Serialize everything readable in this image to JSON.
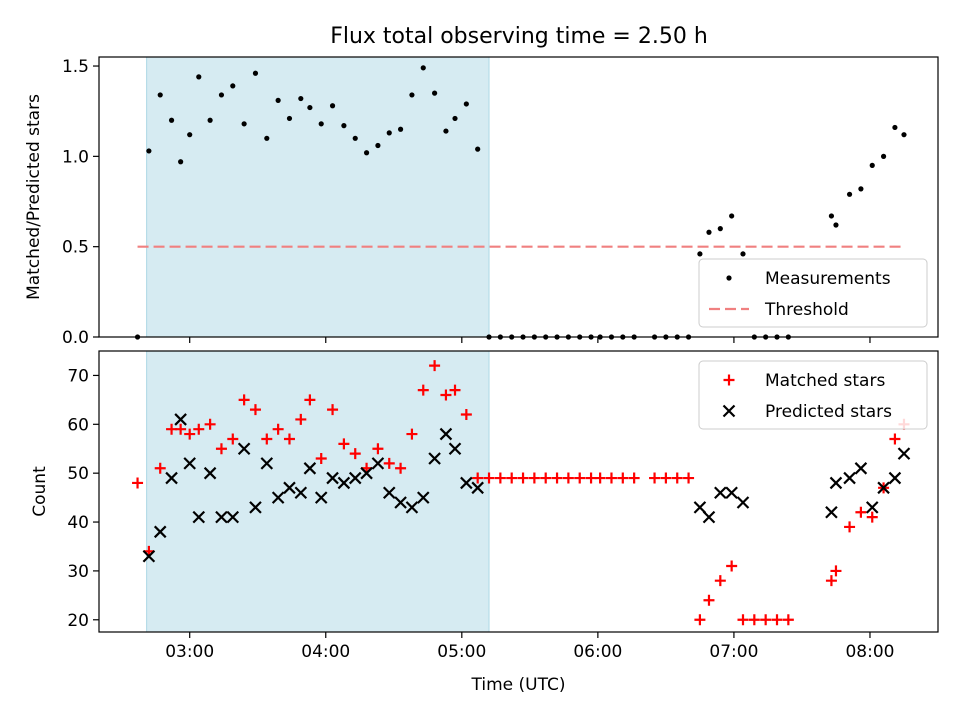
{
  "figure": {
    "title": "Flux total observing time = 2.50 h"
  },
  "chart_data": [
    {
      "type": "scatter",
      "ylabel": "Matched/Predicted stars",
      "xlim": [
        "02:20",
        "08:30"
      ],
      "ylim": [
        0,
        1.55
      ],
      "xticks": [
        "03:00",
        "04:00",
        "05:00",
        "06:00",
        "07:00",
        "08:00"
      ],
      "yticks": [
        0.0,
        0.5,
        1.0,
        1.5
      ],
      "ytick_labels": [
        "0.0",
        "0.5",
        "1.0",
        "1.5"
      ],
      "highlight_span": [
        "02:41",
        "05:12"
      ],
      "highlight_color": "#add8e6",
      "legend_position": "lower right",
      "series": [
        {
          "name": "Measurements",
          "marker": "dot",
          "color": "#000000",
          "points": [
            [
              "02:37",
              0.0
            ],
            [
              "02:42",
              1.03
            ],
            [
              "02:47",
              1.34
            ],
            [
              "02:52",
              1.2
            ],
            [
              "02:56",
              0.97
            ],
            [
              "03:00",
              1.12
            ],
            [
              "03:04",
              1.44
            ],
            [
              "03:09",
              1.2
            ],
            [
              "03:14",
              1.34
            ],
            [
              "03:19",
              1.39
            ],
            [
              "03:24",
              1.18
            ],
            [
              "03:29",
              1.46
            ],
            [
              "03:34",
              1.1
            ],
            [
              "03:39",
              1.31
            ],
            [
              "03:44",
              1.21
            ],
            [
              "03:49",
              1.32
            ],
            [
              "03:53",
              1.27
            ],
            [
              "03:58",
              1.18
            ],
            [
              "04:03",
              1.28
            ],
            [
              "04:08",
              1.17
            ],
            [
              "04:13",
              1.1
            ],
            [
              "04:18",
              1.02
            ],
            [
              "04:23",
              1.06
            ],
            [
              "04:28",
              1.13
            ],
            [
              "04:33",
              1.15
            ],
            [
              "04:38",
              1.34
            ],
            [
              "04:43",
              1.49
            ],
            [
              "04:48",
              1.35
            ],
            [
              "04:53",
              1.14
            ],
            [
              "04:57",
              1.21
            ],
            [
              "05:02",
              1.29
            ],
            [
              "05:07",
              1.04
            ],
            [
              "05:12",
              0.0
            ],
            [
              "05:17",
              0.0
            ],
            [
              "05:22",
              0.0
            ],
            [
              "05:27",
              0.0
            ],
            [
              "05:32",
              0.0
            ],
            [
              "05:37",
              0.0
            ],
            [
              "05:42",
              0.0
            ],
            [
              "05:47",
              0.0
            ],
            [
              "05:52",
              0.0
            ],
            [
              "05:57",
              0.0
            ],
            [
              "06:01",
              0.0
            ],
            [
              "06:06",
              0.0
            ],
            [
              "06:11",
              0.0
            ],
            [
              "06:16",
              0.0
            ],
            [
              "06:25",
              0.0
            ],
            [
              "06:30",
              0.0
            ],
            [
              "06:35",
              0.0
            ],
            [
              "06:40",
              0.0
            ],
            [
              "06:45",
              0.46
            ],
            [
              "06:49",
              0.58
            ],
            [
              "06:54",
              0.6
            ],
            [
              "06:59",
              0.67
            ],
            [
              "07:04",
              0.46
            ],
            [
              "07:09",
              0.0
            ],
            [
              "07:14",
              0.0
            ],
            [
              "07:19",
              0.0
            ],
            [
              "07:24",
              0.0
            ],
            [
              "07:43",
              0.67
            ],
            [
              "07:45",
              0.62
            ],
            [
              "07:51",
              0.79
            ],
            [
              "07:56",
              0.82
            ],
            [
              "08:01",
              0.95
            ],
            [
              "08:06",
              1.0
            ],
            [
              "08:11",
              1.16
            ],
            [
              "08:15",
              1.12
            ]
          ]
        },
        {
          "name": "Threshold",
          "marker": "dashed-line",
          "color": "#f08080",
          "points": [
            [
              "02:37",
              0.5
            ],
            [
              "08:15",
              0.5
            ]
          ]
        }
      ]
    },
    {
      "type": "scatter",
      "xlabel": "Time (UTC)",
      "ylabel": "Count",
      "xlim": [
        "02:20",
        "08:30"
      ],
      "ylim": [
        17.5,
        75
      ],
      "xticks": [
        "03:00",
        "04:00",
        "05:00",
        "06:00",
        "07:00",
        "08:00"
      ],
      "yticks": [
        20,
        30,
        40,
        50,
        60,
        70
      ],
      "highlight_span": [
        "02:41",
        "05:12"
      ],
      "highlight_color": "#add8e6",
      "legend_position": "upper right",
      "series": [
        {
          "name": "Matched stars",
          "marker": "plus",
          "color": "#ff0000",
          "points": [
            [
              "02:37",
              48
            ],
            [
              "02:42",
              34
            ],
            [
              "02:47",
              51
            ],
            [
              "02:52",
              59
            ],
            [
              "02:56",
              59
            ],
            [
              "03:00",
              58
            ],
            [
              "03:04",
              59
            ],
            [
              "03:09",
              60
            ],
            [
              "03:14",
              55
            ],
            [
              "03:19",
              57
            ],
            [
              "03:24",
              65
            ],
            [
              "03:29",
              63
            ],
            [
              "03:34",
              57
            ],
            [
              "03:39",
              59
            ],
            [
              "03:44",
              57
            ],
            [
              "03:49",
              61
            ],
            [
              "03:53",
              65
            ],
            [
              "03:58",
              53
            ],
            [
              "04:03",
              63
            ],
            [
              "04:08",
              56
            ],
            [
              "04:13",
              54
            ],
            [
              "04:18",
              51
            ],
            [
              "04:23",
              55
            ],
            [
              "04:28",
              52
            ],
            [
              "04:33",
              51
            ],
            [
              "04:38",
              58
            ],
            [
              "04:43",
              67
            ],
            [
              "04:48",
              72
            ],
            [
              "04:53",
              66
            ],
            [
              "04:57",
              67
            ],
            [
              "05:02",
              62
            ],
            [
              "05:07",
              49
            ],
            [
              "05:12",
              49
            ],
            [
              "05:17",
              49
            ],
            [
              "05:22",
              49
            ],
            [
              "05:27",
              49
            ],
            [
              "05:32",
              49
            ],
            [
              "05:37",
              49
            ],
            [
              "05:42",
              49
            ],
            [
              "05:47",
              49
            ],
            [
              "05:52",
              49
            ],
            [
              "05:57",
              49
            ],
            [
              "06:01",
              49
            ],
            [
              "06:06",
              49
            ],
            [
              "06:11",
              49
            ],
            [
              "06:16",
              49
            ],
            [
              "06:25",
              49
            ],
            [
              "06:30",
              49
            ],
            [
              "06:35",
              49
            ],
            [
              "06:40",
              49
            ],
            [
              "06:45",
              20
            ],
            [
              "06:49",
              24
            ],
            [
              "06:54",
              28
            ],
            [
              "06:59",
              31
            ],
            [
              "07:04",
              20
            ],
            [
              "07:09",
              20
            ],
            [
              "07:14",
              20
            ],
            [
              "07:19",
              20
            ],
            [
              "07:24",
              20
            ],
            [
              "07:43",
              28
            ],
            [
              "07:45",
              30
            ],
            [
              "07:51",
              39
            ],
            [
              "07:56",
              42
            ],
            [
              "08:01",
              41
            ],
            [
              "08:06",
              47
            ],
            [
              "08:11",
              57
            ],
            [
              "08:15",
              60
            ]
          ]
        },
        {
          "name": "Predicted stars",
          "marker": "x",
          "color": "#000000",
          "points": [
            [
              "02:42",
              33
            ],
            [
              "02:47",
              38
            ],
            [
              "02:52",
              49
            ],
            [
              "02:56",
              61
            ],
            [
              "03:00",
              52
            ],
            [
              "03:04",
              41
            ],
            [
              "03:09",
              50
            ],
            [
              "03:14",
              41
            ],
            [
              "03:19",
              41
            ],
            [
              "03:24",
              55
            ],
            [
              "03:29",
              43
            ],
            [
              "03:34",
              52
            ],
            [
              "03:39",
              45
            ],
            [
              "03:44",
              47
            ],
            [
              "03:49",
              46
            ],
            [
              "03:53",
              51
            ],
            [
              "03:58",
              45
            ],
            [
              "04:03",
              49
            ],
            [
              "04:08",
              48
            ],
            [
              "04:13",
              49
            ],
            [
              "04:18",
              50
            ],
            [
              "04:23",
              52
            ],
            [
              "04:28",
              46
            ],
            [
              "04:33",
              44
            ],
            [
              "04:38",
              43
            ],
            [
              "04:43",
              45
            ],
            [
              "04:48",
              53
            ],
            [
              "04:53",
              58
            ],
            [
              "04:57",
              55
            ],
            [
              "05:02",
              48
            ],
            [
              "05:07",
              47
            ],
            [
              "06:45",
              43
            ],
            [
              "06:49",
              41
            ],
            [
              "06:54",
              46
            ],
            [
              "06:59",
              46
            ],
            [
              "07:04",
              44
            ],
            [
              "07:43",
              42
            ],
            [
              "07:45",
              48
            ],
            [
              "07:51",
              49
            ],
            [
              "07:56",
              51
            ],
            [
              "08:01",
              43
            ],
            [
              "08:06",
              47
            ],
            [
              "08:11",
              49
            ],
            [
              "08:15",
              54
            ]
          ]
        }
      ]
    }
  ]
}
